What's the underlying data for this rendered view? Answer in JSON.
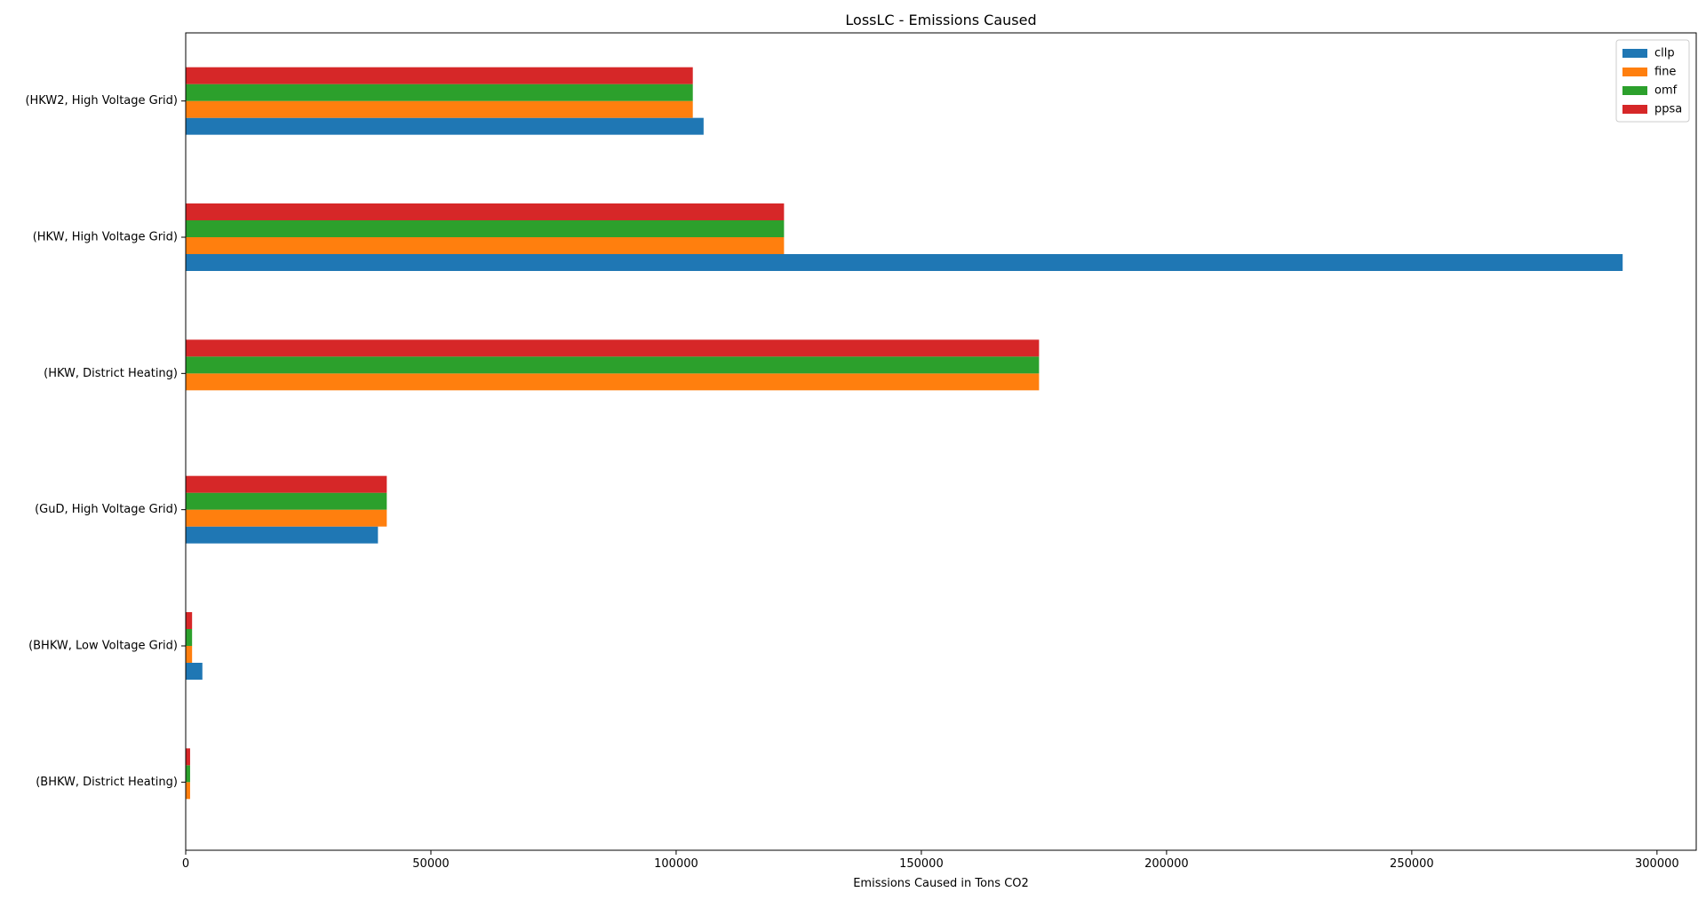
{
  "chart_data": {
    "type": "bar",
    "orientation": "horizontal",
    "title": "LossLC - Emissions Caused",
    "xlabel": "Emissions Caused in Tons CO2",
    "ylabel": "",
    "xlim": [
      0,
      308000
    ],
    "xticks": [
      0,
      50000,
      100000,
      150000,
      200000,
      250000,
      300000
    ],
    "xtick_labels": [
      "0",
      "50000",
      "100000",
      "150000",
      "200000",
      "250000",
      "300000"
    ],
    "grid": false,
    "legend_position": "top-right",
    "categories": [
      "(BHKW, District Heating)",
      "(BHKW, Low Voltage Grid)",
      "(GuD, High Voltage Grid)",
      "(HKW, District Heating)",
      "(HKW, High Voltage Grid)",
      "(HKW2, High Voltage Grid)"
    ],
    "series": [
      {
        "name": "cllp",
        "color": "#1f77b4",
        "values": [
          0,
          3400,
          39200,
          0,
          293000,
          105600
        ]
      },
      {
        "name": "fine",
        "color": "#ff7f0e",
        "values": [
          900,
          1300,
          41000,
          174000,
          122000,
          103400
        ]
      },
      {
        "name": "omf",
        "color": "#2ca02c",
        "values": [
          900,
          1300,
          41000,
          174000,
          122000,
          103400
        ]
      },
      {
        "name": "ppsa",
        "color": "#d62728",
        "values": [
          900,
          1300,
          41000,
          174000,
          122000,
          103400
        ]
      }
    ]
  }
}
